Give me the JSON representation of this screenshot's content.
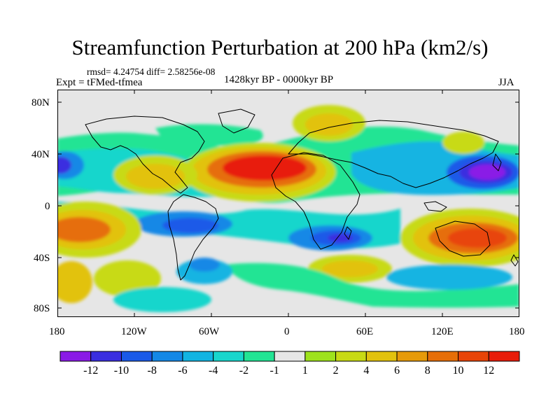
{
  "title": "Streamfunction Perturbation at 200 hPa (km2/s)",
  "stats": "rmsd= 4.24754  diff= 2.58256e-08",
  "expt": "Expt = tFMed-tfmea",
  "period": "1428kyr BP - 0000kyr BP",
  "season": "JJA",
  "lat_labels": [
    "80N",
    "40N",
    "0",
    "40S",
    "80S"
  ],
  "lon_labels": [
    "180",
    "120W",
    "60W",
    "0",
    "60E",
    "120E",
    "180"
  ],
  "colorbar": {
    "colors": [
      "#8a1ae6",
      "#3a2ee0",
      "#1a5ae8",
      "#1488e6",
      "#12b4e2",
      "#18d6cc",
      "#22e494",
      "#e6e6e6",
      "#9ee21c",
      "#c8da14",
      "#e2c20e",
      "#e69a0a",
      "#e66e08",
      "#e84408",
      "#e81c0a"
    ],
    "labels": [
      "-12",
      "-10",
      "-8",
      "-6",
      "-4",
      "-2",
      "-1",
      "1",
      "2",
      "4",
      "6",
      "8",
      "10",
      "12"
    ]
  }
}
